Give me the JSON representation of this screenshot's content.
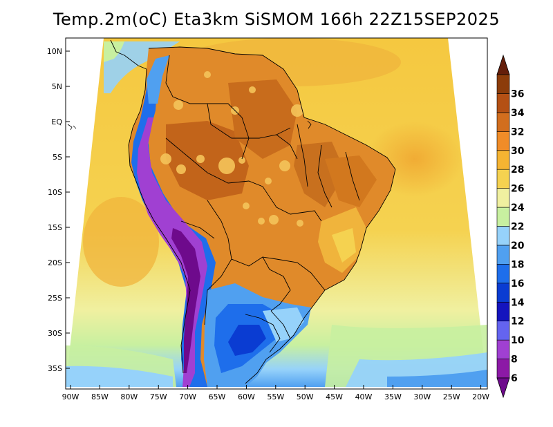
{
  "title": "Temp.2m(oC) Eta3km SiSMOM 166h 22Z15SEP2025",
  "map": {
    "lat_labels": [
      "10N",
      "5N",
      "EQ",
      "5S",
      "10S",
      "15S",
      "20S",
      "25S",
      "30S",
      "35S"
    ],
    "lon_labels": [
      "90W",
      "85W",
      "80W",
      "75W",
      "70W",
      "65W",
      "60W",
      "55W",
      "50W",
      "45W",
      "40W",
      "35W",
      "30W",
      "25W",
      "20W"
    ],
    "lat_range": [
      12,
      -38
    ],
    "lon_range": [
      -91,
      -20
    ]
  },
  "colorbar": {
    "labels": [
      "6",
      "8",
      "10",
      "12",
      "14",
      "16",
      "18",
      "20",
      "22",
      "24",
      "26",
      "28",
      "30",
      "32",
      "34",
      "36"
    ],
    "colors": [
      "#6e0a8c",
      "#8c19a6",
      "#a040d2",
      "#6464f0",
      "#1414be",
      "#0a3cd2",
      "#1e6eeb",
      "#50a0f0",
      "#96d2fa",
      "#c8f0a0",
      "#f0f0a0",
      "#f5d250",
      "#f5b432",
      "#f08c28",
      "#d26e1e",
      "#b45014",
      "#8c3c0a",
      "#641e0a"
    ]
  }
}
